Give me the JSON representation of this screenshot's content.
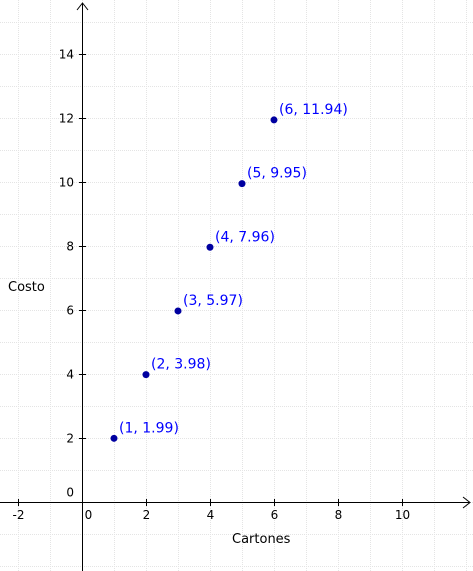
{
  "chart_data": {
    "type": "scatter",
    "title": "",
    "xlabel": "Cartones",
    "ylabel": "Costo",
    "xlim": [
      -2.6,
      12
    ],
    "ylim": [
      -2.2,
      15.5
    ],
    "grid": true,
    "x_ticks": [
      -2,
      0,
      2,
      4,
      6,
      8,
      10
    ],
    "y_ticks": [
      0,
      2,
      4,
      6,
      8,
      10,
      12,
      14
    ],
    "colors": {
      "point": "#0000a0",
      "label": "#0000ff",
      "grid": "#e4e4e4"
    },
    "points": [
      {
        "x": 1,
        "y": 1.99,
        "label": "(1, 1.99)"
      },
      {
        "x": 2,
        "y": 3.98,
        "label": "(2, 3.98)"
      },
      {
        "x": 3,
        "y": 5.97,
        "label": "(3, 5.97)"
      },
      {
        "x": 4,
        "y": 7.96,
        "label": "(4, 7.96)"
      },
      {
        "x": 5,
        "y": 9.95,
        "label": "(5, 9.95)"
      },
      {
        "x": 6,
        "y": 11.94,
        "label": "(6, 11.94)"
      }
    ]
  }
}
